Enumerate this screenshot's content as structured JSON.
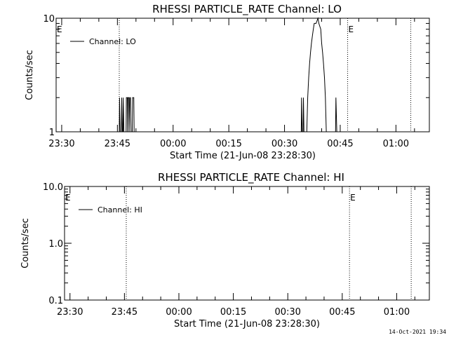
{
  "footer": "14-Oct-2021 19:34",
  "chart_data": [
    {
      "type": "line",
      "title": "RHESSI PARTICLE_RATE Channel: LO",
      "xlabel": "Start Time (21-Jun-08 23:28:30)",
      "ylabel": "Counts/sec",
      "y_scale": "log",
      "xlim": [
        "23:28:30",
        "01:09:00"
      ],
      "ylim": [
        1,
        10
      ],
      "x_ticks": [
        "23:30",
        "23:45",
        "00:00",
        "00:15",
        "00:30",
        "00:45",
        "01:00"
      ],
      "y_ticks": [
        "1",
        "10"
      ],
      "legend": {
        "entries": [
          "Channel: LO"
        ],
        "position": "top-left"
      },
      "annotations": [
        {
          "text": "E",
          "x": "23:28:30"
        },
        {
          "text": "E",
          "x": "00:47:00"
        }
      ],
      "vertical_dotted_lines": [
        "23:45:30",
        "00:47:00",
        "01:04:00"
      ],
      "series": [
        {
          "name": "Channel: LO",
          "points": [
            [
              "23:45:30",
              1
            ],
            [
              "23:45:35",
              2
            ],
            [
              "23:45:45",
              1
            ],
            [
              "23:46:05",
              1
            ],
            [
              "23:46:10",
              2
            ],
            [
              "23:46:20",
              1
            ],
            [
              "23:46:30",
              1
            ],
            [
              "23:46:35",
              2
            ],
            [
              "23:46:45",
              1
            ],
            [
              "23:47:20",
              1
            ],
            [
              "23:47:25",
              2
            ],
            [
              "23:47:40",
              2
            ],
            [
              "23:47:45",
              1
            ],
            [
              "23:47:50",
              2
            ],
            [
              "23:48:05",
              2
            ],
            [
              "23:48:10",
              1
            ],
            [
              "23:48:20",
              2
            ],
            [
              "23:48:30",
              2
            ],
            [
              "23:48:40",
              1
            ],
            [
              "23:49:00",
              1
            ],
            [
              "23:49:05",
              2
            ],
            [
              "23:49:25",
              2
            ],
            [
              "23:49:30",
              1
            ],
            [
              "00:34:30",
              1
            ],
            [
              "00:34:35",
              2
            ],
            [
              "00:34:45",
              1
            ],
            [
              "00:35:00",
              1
            ],
            [
              "00:35:05",
              2
            ],
            [
              "00:35:15",
              1
            ],
            [
              "00:36:00",
              1
            ],
            [
              "00:36:15",
              2
            ],
            [
              "00:36:30",
              3
            ],
            [
              "00:36:45",
              4
            ],
            [
              "00:37:00",
              5
            ],
            [
              "00:37:15",
              6
            ],
            [
              "00:37:30",
              7
            ],
            [
              "00:37:45",
              8
            ],
            [
              "00:38:00",
              9
            ],
            [
              "00:38:30",
              9
            ],
            [
              "00:39:00",
              10
            ],
            [
              "00:39:15",
              9
            ],
            [
              "00:39:45",
              8
            ],
            [
              "00:40:00",
              6
            ],
            [
              "00:40:15",
              5
            ],
            [
              "00:40:30",
              4
            ],
            [
              "00:40:45",
              3
            ],
            [
              "00:41:00",
              2
            ],
            [
              "00:41:15",
              1
            ],
            [
              "00:42:00",
              1
            ],
            [
              "00:42:30",
              1
            ],
            [
              "00:43:45",
              1
            ],
            [
              "00:43:50",
              2
            ],
            [
              "00:44:05",
              1
            ]
          ]
        }
      ]
    },
    {
      "type": "line",
      "title": "RHESSI PARTICLE_RATE Channel: HI",
      "xlabel": "Start Time (21-Jun-08 23:28:30)",
      "ylabel": "Counts/sec",
      "y_scale": "log",
      "xlim": [
        "23:28:30",
        "01:09:00"
      ],
      "ylim": [
        0.1,
        10
      ],
      "x_ticks": [
        "23:30",
        "23:45",
        "00:00",
        "00:15",
        "00:30",
        "00:45",
        "01:00"
      ],
      "y_ticks": [
        "0.1",
        "1.0",
        "10.0"
      ],
      "legend": {
        "entries": [
          "Channel: HI"
        ],
        "position": "top-left"
      },
      "annotations": [
        {
          "text": "E",
          "x": "23:28:30"
        },
        {
          "text": "E",
          "x": "00:47:00"
        }
      ],
      "vertical_dotted_lines": [
        "23:45:30",
        "00:47:00",
        "01:04:00"
      ],
      "series": [
        {
          "name": "Channel: HI",
          "points": []
        }
      ]
    }
  ]
}
